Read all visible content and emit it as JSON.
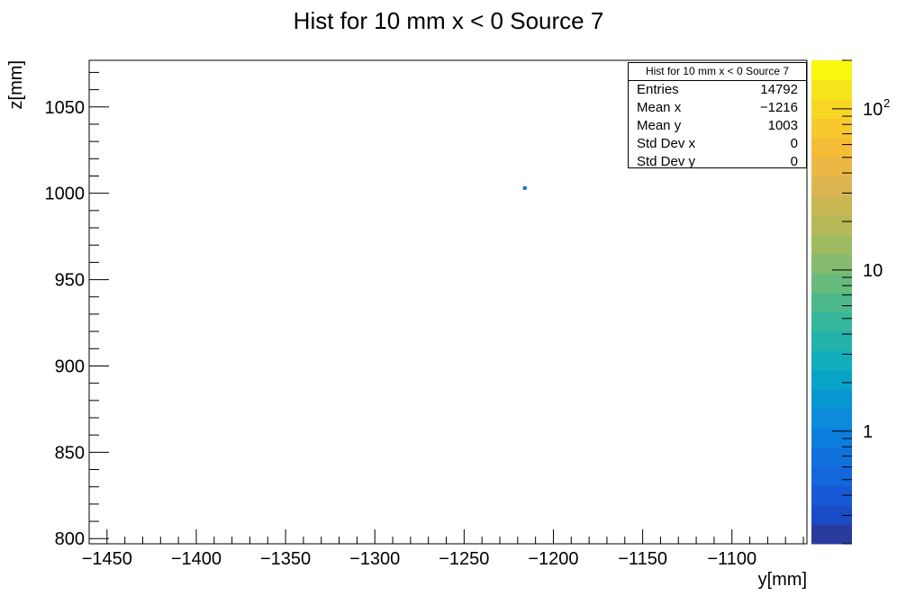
{
  "chart_data": {
    "type": "heatmap",
    "title": "Hist for 10 mm x < 0 Source 7",
    "xlabel": "y[mm]",
    "ylabel": "z[mm]",
    "xlim": [
      -1460,
      -1058
    ],
    "ylim": [
      797,
      1077
    ],
    "x_ticks": [
      -1450,
      -1400,
      -1350,
      -1300,
      -1250,
      -1200,
      -1150,
      -1100
    ],
    "x_tick_labels": [
      "−1450",
      "−1400",
      "−1350",
      "−1300",
      "−1250",
      "−1200",
      "−1150",
      "−1100"
    ],
    "y_ticks": [
      800,
      850,
      900,
      950,
      1000,
      1050
    ],
    "y_tick_labels": [
      "800",
      "850",
      "900",
      "950",
      "1000",
      "1050"
    ],
    "points": [
      {
        "x": -1216,
        "y": 1003,
        "count": 14792
      }
    ],
    "colorbar": {
      "scale": "log",
      "range": [
        0.2,
        200
      ],
      "ticks": [
        1,
        10,
        100
      ],
      "tick_labels": [
        "1",
        "10",
        "10",
        "2"
      ],
      "colors": [
        "#2a3b9e",
        "#1a4cc6",
        "#1659d4",
        "#1466db",
        "#1172dd",
        "#0c7edd",
        "#0b8bd9",
        "#0897d1",
        "#07a4c6",
        "#13aebb",
        "#24b3ab",
        "#36b79b",
        "#4db98b",
        "#68ba7c",
        "#84bb6e",
        "#9ebb62",
        "#b6b958",
        "#cab653",
        "#dcb551",
        "#ecb745",
        "#f5bd37",
        "#f8c82d",
        "#f8d624",
        "#f6e51b",
        "#f9f80e"
      ],
      "colors_listed_bottom_to_top": true
    },
    "grid": false
  },
  "stats": {
    "title": "Hist for 10 mm x < 0 Source 7",
    "rows": [
      {
        "label": "Entries",
        "value": "14792"
      },
      {
        "label": "Mean x",
        "value": "−1216"
      },
      {
        "label": "Mean y",
        "value": "1003"
      },
      {
        "label": "Std Dev x",
        "value": "0"
      },
      {
        "label": "Std Dev y",
        "value": "0"
      }
    ]
  }
}
